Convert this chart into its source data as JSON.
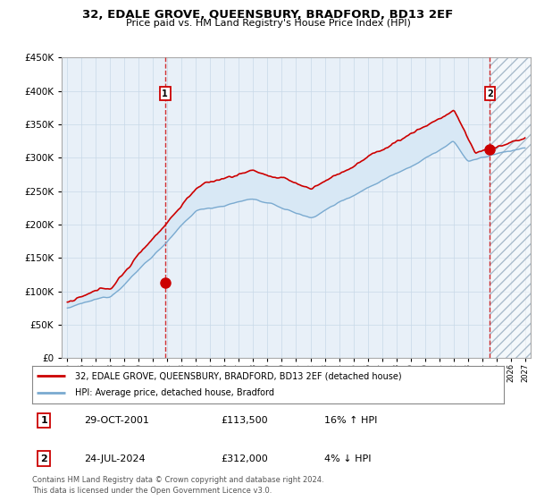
{
  "title": "32, EDALE GROVE, QUEENSBURY, BRADFORD, BD13 2EF",
  "subtitle": "Price paid vs. HM Land Registry's House Price Index (HPI)",
  "legend_line1": "32, EDALE GROVE, QUEENSBURY, BRADFORD, BD13 2EF (detached house)",
  "legend_line2": "HPI: Average price, detached house, Bradford",
  "table_rows": [
    {
      "num": "1",
      "date": "29-OCT-2001",
      "price": "£113,500",
      "hpi": "16% ↑ HPI"
    },
    {
      "num": "2",
      "date": "24-JUL-2024",
      "price": "£312,000",
      "hpi": "4% ↓ HPI"
    }
  ],
  "footnote": "Contains HM Land Registry data © Crown copyright and database right 2024.\nThis data is licensed under the Open Government Licence v3.0.",
  "sale1_year": 2001.83,
  "sale1_price": 113500,
  "sale2_year": 2024.55,
  "sale2_price": 312000,
  "hpi_color": "#7aaad0",
  "property_color": "#cc0000",
  "fill_color": "#d8e8f5",
  "grid_color": "#c8d8e8",
  "bg_color": "#e8f0f8",
  "ylim": [
    0,
    450000
  ],
  "xmin": 1994.6,
  "xmax": 2027.4
}
